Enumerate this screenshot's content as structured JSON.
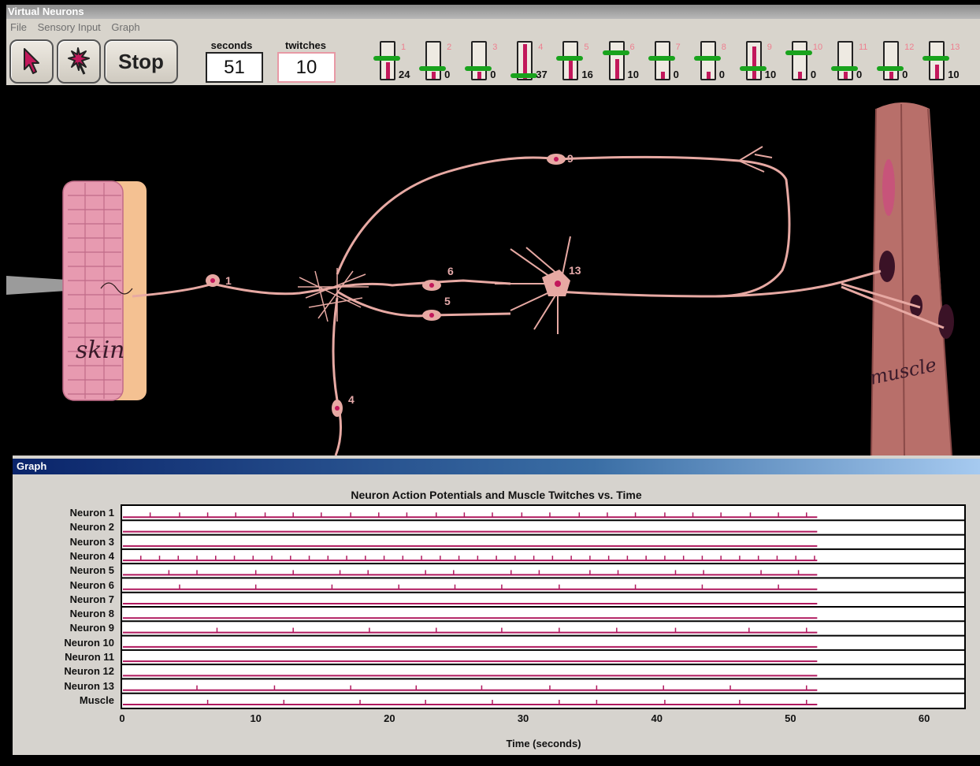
{
  "window": {
    "title": "Virtual Neurons"
  },
  "menu": {
    "items": [
      "File",
      "Sensory Input",
      "Graph"
    ]
  },
  "toolbar": {
    "stop_label": "Stop",
    "seconds_label": "seconds",
    "seconds_value": "51",
    "twitches_label": "twitches",
    "twitches_value": "10"
  },
  "meters": [
    {
      "id": "1",
      "count": "24",
      "level": 0.45,
      "threshold": 0.55
    },
    {
      "id": "2",
      "count": "0",
      "level": 0.2,
      "threshold": 0.3
    },
    {
      "id": "3",
      "count": "0",
      "level": 0.2,
      "threshold": 0.3
    },
    {
      "id": "4",
      "count": "37",
      "level": 0.95,
      "threshold": 0.12
    },
    {
      "id": "5",
      "count": "16",
      "level": 0.55,
      "threshold": 0.55
    },
    {
      "id": "6",
      "count": "10",
      "level": 0.55,
      "threshold": 0.7
    },
    {
      "id": "7",
      "count": "0",
      "level": 0.2,
      "threshold": 0.55
    },
    {
      "id": "8",
      "count": "0",
      "level": 0.2,
      "threshold": 0.55
    },
    {
      "id": "9",
      "count": "10",
      "level": 0.9,
      "threshold": 0.3
    },
    {
      "id": "10",
      "count": "0",
      "level": 0.2,
      "threshold": 0.7
    },
    {
      "id": "11",
      "count": "0",
      "level": 0.2,
      "threshold": 0.3
    },
    {
      "id": "12",
      "count": "0",
      "level": 0.2,
      "threshold": 0.3
    },
    {
      "id": "13",
      "count": "10",
      "level": 0.4,
      "threshold": 0.55
    }
  ],
  "scene": {
    "skin_label": "skin",
    "muscle_label": "muscle",
    "neuron_labels": [
      "1",
      "4",
      "5",
      "6",
      "9",
      "13"
    ]
  },
  "graph": {
    "window_title": "Graph",
    "rows": [
      "Neuron 1",
      "Neuron 2",
      "Neuron 3",
      "Neuron 4",
      "Neuron 5",
      "Neuron 6",
      "Neuron 7",
      "Neuron 8",
      "Neuron 9",
      "Neuron 10",
      "Neuron 11",
      "Neuron 12",
      "Neuron 13",
      "Muscle"
    ]
  },
  "colors": {
    "spike": "#b0185e",
    "threshold": "#19a31d",
    "neuron": "#e7a9a3"
  },
  "chart_data": {
    "type": "scatter",
    "title": "Neuron Action Potentials and Muscle Twitches vs. Time",
    "xlabel": "Time (seconds)",
    "ylabel": "",
    "xlim": [
      0,
      63
    ],
    "xticks": [
      0,
      10,
      20,
      30,
      40,
      50,
      60
    ],
    "end_time": 52,
    "series": [
      {
        "name": "Neuron 1",
        "x": [
          2.1,
          4.3,
          6.4,
          8.5,
          10.7,
          12.8,
          14.9,
          17.1,
          19.2,
          21.3,
          23.5,
          25.6,
          27.7,
          29.9,
          32.0,
          34.2,
          36.3,
          38.4,
          40.6,
          42.7,
          44.8,
          47.0,
          49.1,
          51.2
        ]
      },
      {
        "name": "Neuron 2",
        "x": []
      },
      {
        "name": "Neuron 3",
        "x": []
      },
      {
        "name": "Neuron 4",
        "x": [
          1.4,
          2.8,
          4.2,
          5.6,
          7.0,
          8.4,
          9.8,
          11.2,
          12.6,
          14.0,
          15.4,
          16.8,
          18.2,
          19.6,
          21.0,
          22.4,
          23.8,
          25.2,
          26.6,
          28.0,
          29.4,
          30.8,
          32.2,
          33.6,
          35.0,
          36.4,
          37.8,
          39.2,
          40.6,
          42.0,
          43.4,
          44.8,
          46.2,
          47.6,
          49.0,
          50.4,
          51.8
        ]
      },
      {
        "name": "Neuron 5",
        "x": [
          3.5,
          5.6,
          10.0,
          12.8,
          16.3,
          18.4,
          22.7,
          24.8,
          29.1,
          31.2,
          35.0,
          37.1,
          41.4,
          43.5,
          47.8,
          50.6
        ]
      },
      {
        "name": "Neuron 6",
        "x": [
          4.3,
          10.0,
          15.7,
          20.7,
          24.9,
          28.4,
          32.7,
          38.4,
          43.4,
          49.1
        ]
      },
      {
        "name": "Neuron 7",
        "x": []
      },
      {
        "name": "Neuron 8",
        "x": []
      },
      {
        "name": "Neuron 9",
        "x": [
          7.1,
          12.8,
          18.5,
          23.5,
          28.4,
          32.7,
          37.0,
          41.4,
          46.9,
          51.2
        ]
      },
      {
        "name": "Neuron 10",
        "x": []
      },
      {
        "name": "Neuron 11",
        "x": []
      },
      {
        "name": "Neuron 12",
        "x": []
      },
      {
        "name": "Neuron 13",
        "x": [
          5.6,
          11.4,
          17.1,
          22.0,
          26.9,
          32.0,
          35.5,
          40.5,
          45.5,
          51.2
        ]
      },
      {
        "name": "Muscle",
        "x": [
          6.4,
          12.1,
          17.8,
          22.7,
          27.7,
          32.7,
          35.5,
          40.6,
          46.2,
          51.2
        ]
      }
    ]
  }
}
